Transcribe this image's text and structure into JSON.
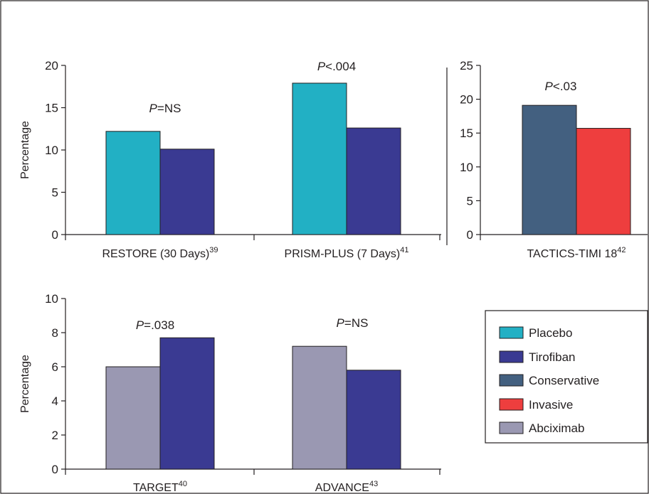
{
  "chart_data": [
    {
      "type": "bar",
      "ylabel": "Percentage",
      "ylim": [
        0,
        20
      ],
      "yticks": [
        0,
        5,
        10,
        15,
        20
      ],
      "categories": [
        {
          "label": "RESTORE (30 Days)",
          "sup": "39"
        },
        {
          "label": "PRISM-PLUS (7 Days)",
          "sup": "41"
        }
      ],
      "series": [
        {
          "name": "Placebo",
          "color": "#22b0c4",
          "values": [
            12.2,
            17.9
          ]
        },
        {
          "name": "Tirofiban",
          "color": "#3a3a92",
          "values": [
            10.1,
            12.6
          ]
        }
      ],
      "annotations": [
        {
          "italic": "P",
          "rest": "=NS",
          "category": 0
        },
        {
          "italic": "P",
          "rest": "<.004",
          "category": "top"
        }
      ]
    },
    {
      "type": "bar",
      "ylim": [
        0,
        25
      ],
      "yticks": [
        0,
        5,
        10,
        15,
        20,
        25
      ],
      "categories": [
        {
          "label": "TACTICS-TIMI 18",
          "sup": "42"
        }
      ],
      "series": [
        {
          "name": "Conservative",
          "color": "#436080",
          "values": [
            19.1
          ]
        },
        {
          "name": "Invasive",
          "color": "#ee3e3e",
          "values": [
            15.7
          ]
        }
      ],
      "annotations": [
        {
          "italic": "P",
          "rest": "<.03",
          "category": 0
        }
      ]
    },
    {
      "type": "bar",
      "ylabel": "Percentage",
      "ylim": [
        0,
        10
      ],
      "yticks": [
        0,
        2,
        4,
        6,
        8,
        10
      ],
      "categories": [
        {
          "label": "TARGET",
          "sup": "40"
        },
        {
          "label": "ADVANCE",
          "sup": "43"
        }
      ],
      "series_per_category": [
        [
          {
            "name": "Abciximab",
            "color": "#9a98b2",
            "value": 6.0
          },
          {
            "name": "Tirofiban",
            "color": "#3a3a92",
            "value": 7.7
          }
        ],
        [
          {
            "name": "Abciximab",
            "color": "#9a98b2",
            "value": 7.2
          },
          {
            "name": "Tirofiban",
            "color": "#3a3a92",
            "value": 5.8
          }
        ]
      ],
      "annotations": [
        {
          "italic": "P",
          "rest": "=.038",
          "category": 0
        },
        {
          "italic": "P",
          "rest": "=NS",
          "category": 1
        }
      ]
    }
  ],
  "legend": {
    "placement": "bottom-right",
    "items": [
      {
        "name": "Placebo",
        "color": "#22b0c4"
      },
      {
        "name": "Tirofiban",
        "color": "#3a3a92"
      },
      {
        "name": "Conservative",
        "color": "#436080"
      },
      {
        "name": "Invasive",
        "color": "#ee3e3e"
      },
      {
        "name": "Abciximab",
        "color": "#9a98b2"
      }
    ]
  }
}
